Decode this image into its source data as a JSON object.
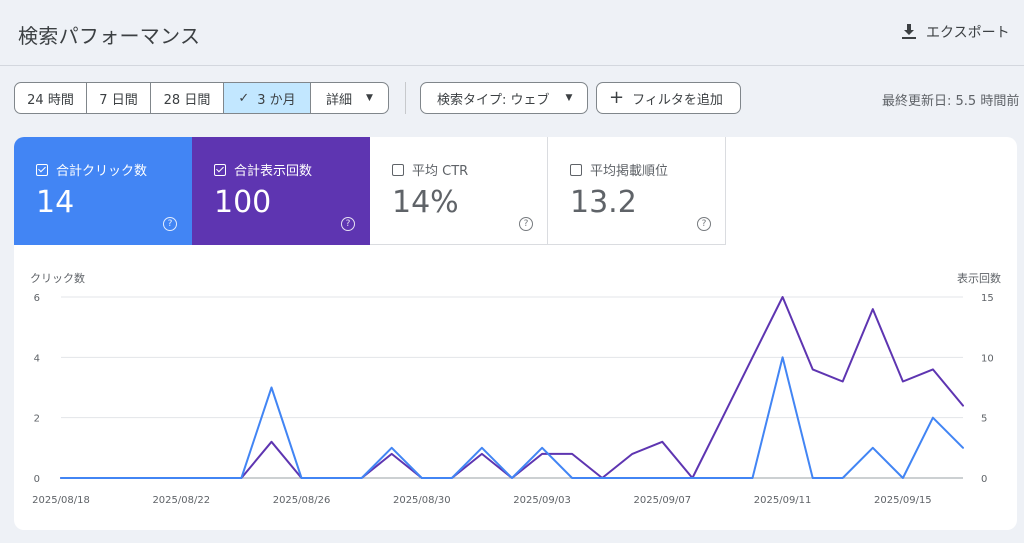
{
  "header": {
    "title": "検索パフォーマンス",
    "export_label": "エクスポート",
    "icons": {
      "export": "download-icon"
    }
  },
  "filters": {
    "date_ranges": [
      {
        "label": "24 時間",
        "selected": false
      },
      {
        "label": "7 日間",
        "selected": false
      },
      {
        "label": "28 日間",
        "selected": false
      },
      {
        "label": "3 か月",
        "selected": true
      },
      {
        "label": "詳細",
        "selected": false
      }
    ],
    "search_type": "検索タイプ: ウェブ",
    "add_filter": "フィルタを追加",
    "last_updated": "最終更新日: 5.5 時間前"
  },
  "metrics": [
    {
      "label": "合計クリック数",
      "value": "14",
      "checked": true,
      "color": "#4285f4"
    },
    {
      "label": "合計表示回数",
      "value": "100",
      "checked": true,
      "color": "#5e35b1"
    },
    {
      "label": "平均 CTR",
      "value": "14%",
      "checked": false,
      "color": "#ffffff"
    },
    {
      "label": "平均掲載順位",
      "value": "13.2",
      "checked": false,
      "color": "#ffffff"
    }
  ],
  "chart_data": {
    "type": "line",
    "left_axis_title": "クリック数",
    "right_axis_title": "表示回数",
    "left_ylim": [
      0,
      6
    ],
    "right_ylim": [
      0,
      15
    ],
    "left_ticks": [
      "0",
      "2",
      "4",
      "6"
    ],
    "right_ticks": [
      "0",
      "5",
      "10",
      "15"
    ],
    "x_tick_labels": [
      "2025/08/18",
      "2025/08/22",
      "2025/08/26",
      "2025/08/30",
      "2025/09/03",
      "2025/09/07",
      "2025/09/11",
      "2025/09/15"
    ],
    "x": [
      "2025/08/18",
      "2025/08/19",
      "2025/08/20",
      "2025/08/21",
      "2025/08/22",
      "2025/08/23",
      "2025/08/24",
      "2025/08/25",
      "2025/08/26",
      "2025/08/27",
      "2025/08/28",
      "2025/08/29",
      "2025/08/30",
      "2025/08/31",
      "2025/09/01",
      "2025/09/02",
      "2025/09/03",
      "2025/09/04",
      "2025/09/05",
      "2025/09/06",
      "2025/09/07",
      "2025/09/08",
      "2025/09/09",
      "2025/09/10",
      "2025/09/11",
      "2025/09/12",
      "2025/09/13",
      "2025/09/14",
      "2025/09/15",
      "2025/09/16",
      "2025/09/17"
    ],
    "series": [
      {
        "name": "合計クリック数",
        "axis": "left",
        "color": "#4285f4",
        "values": [
          0,
          0,
          0,
          0,
          0,
          0,
          0,
          3,
          0,
          0,
          0,
          1,
          0,
          0,
          1,
          0,
          1,
          0,
          0,
          0,
          0,
          0,
          0,
          0,
          4,
          0,
          0,
          1,
          0,
          2,
          1
        ]
      },
      {
        "name": "合計表示回数",
        "axis": "right",
        "color": "#5e35b1",
        "values": [
          0,
          0,
          0,
          0,
          0,
          0,
          0,
          3,
          0,
          0,
          0,
          2,
          0,
          0,
          2,
          0,
          2,
          2,
          0,
          2,
          3,
          0,
          5,
          10,
          15,
          9,
          8,
          14,
          8,
          9,
          6
        ]
      }
    ],
    "grid": true
  }
}
